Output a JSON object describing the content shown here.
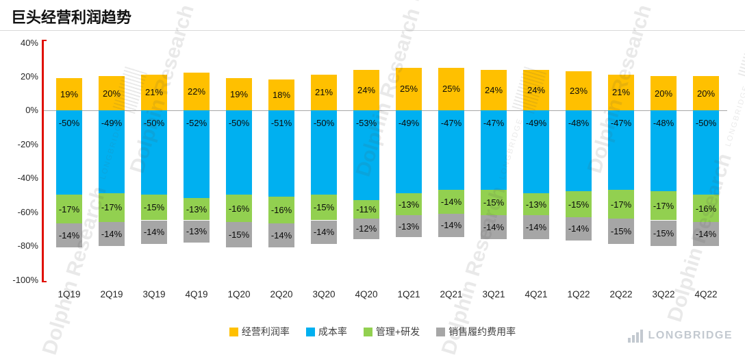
{
  "title": "巨头经营利润趋势",
  "chart_data": {
    "type": "bar",
    "stacked": true,
    "title": "巨头经营利润趋势",
    "categories": [
      "1Q19",
      "2Q19",
      "3Q19",
      "4Q19",
      "1Q20",
      "2Q20",
      "3Q20",
      "4Q20",
      "1Q21",
      "2Q21",
      "3Q21",
      "4Q21",
      "1Q22",
      "2Q22",
      "3Q22",
      "4Q22"
    ],
    "series": [
      {
        "name": "经营利润率",
        "color": "#FFC000",
        "values": [
          19,
          20,
          21,
          22,
          19,
          18,
          21,
          24,
          25,
          25,
          24,
          24,
          23,
          21,
          20,
          20
        ]
      },
      {
        "name": "成本率",
        "color": "#00B0F0",
        "values": [
          -50,
          -49,
          -50,
          -52,
          -50,
          -51,
          -50,
          -53,
          -49,
          -47,
          -47,
          -49,
          -48,
          -47,
          -48,
          -50
        ]
      },
      {
        "name": "管理+研发",
        "color": "#92D050",
        "values": [
          -17,
          -17,
          -15,
          -13,
          -16,
          -16,
          -15,
          -11,
          -13,
          -14,
          -15,
          -13,
          -15,
          -17,
          -17,
          -16
        ]
      },
      {
        "name": "销售履约费用率",
        "color": "#A6A6A6",
        "values": [
          -14,
          -14,
          -14,
          -13,
          -15,
          -14,
          -14,
          -12,
          -13,
          -14,
          -14,
          -14,
          -14,
          -15,
          -15,
          -14
        ]
      }
    ],
    "ylim": [
      -100,
      40
    ],
    "yticks": [
      "40%",
      "20%",
      "0%",
      "-20%",
      "-40%",
      "-60%",
      "-80%",
      "-100%"
    ],
    "legend_position": "bottom",
    "grid": "zero-line-only",
    "accent_colors": {
      "axis_bracket": "#E01000",
      "zero_line": "#A6A6A6"
    }
  },
  "watermark": {
    "primary": "Dolphin Research",
    "secondary": "LONGBRIDGE"
  },
  "logo": {
    "text": "LONGBRIDGE"
  }
}
